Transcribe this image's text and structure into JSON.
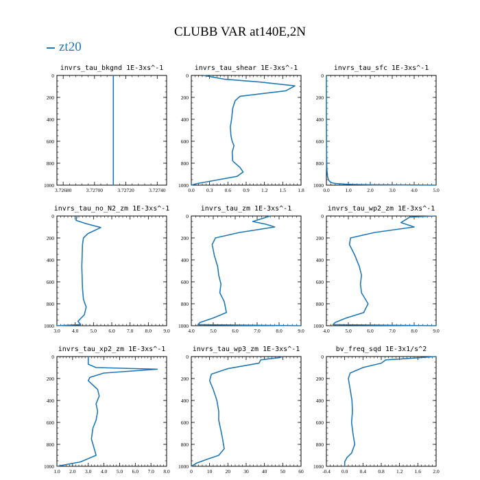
{
  "figure": {
    "title": "CLUBB VAR at140E,2N",
    "legend_label": "zt20",
    "line_color": "#1f77b4"
  },
  "chart_data": [
    {
      "type": "line",
      "title": "invrs_tau_bkgnd   1E-3xs^-1",
      "xlim": [
        3.72676,
        3.72746
      ],
      "ylim": [
        0,
        1000
      ],
      "y_inverted": true,
      "xticks": [
        "3.72680",
        "3.72700",
        "3.72720",
        "3.72740"
      ],
      "xtick_values": [
        3.7268,
        3.727,
        3.7272,
        3.7274
      ],
      "yticks": [
        0,
        200,
        400,
        600,
        800,
        1000
      ],
      "series": [
        {
          "x": [
            3.72712,
            3.72712
          ],
          "y": [
            0,
            1000
          ]
        }
      ]
    },
    {
      "type": "line",
      "title": "invrs_tau_shear   1E-3xs^-1",
      "xlim": [
        0.0,
        1.8
      ],
      "ylim": [
        0,
        1000
      ],
      "y_inverted": true,
      "xticks": [
        "0.0",
        "0.3",
        "0.6",
        "0.9",
        "1.2",
        "1.5",
        "1.8"
      ],
      "xtick_values": [
        0.0,
        0.3,
        0.6,
        0.9,
        1.2,
        1.5,
        1.8
      ],
      "yticks": [
        0,
        200,
        400,
        600,
        800,
        1000
      ],
      "series": [
        {
          "x": [
            0.2,
            0.55,
            1.12,
            1.7,
            1.55,
            0.8,
            0.72,
            0.68,
            0.66,
            0.64,
            0.65,
            0.67,
            0.7,
            0.67,
            0.68,
            0.8,
            0.85,
            0.75,
            0.35,
            0.1,
            0.0
          ],
          "y": [
            0,
            35,
            60,
            95,
            140,
            190,
            230,
            300,
            400,
            470,
            550,
            600,
            640,
            700,
            780,
            840,
            880,
            920,
            960,
            985,
            1000
          ]
        }
      ]
    },
    {
      "type": "line",
      "title": "invrs_tau_sfc   1E-3xs^-1",
      "xlim": [
        0.0,
        5.0
      ],
      "ylim": [
        0,
        1000
      ],
      "y_inverted": true,
      "xticks": [
        "0.0",
        "1.0",
        "2.0",
        "3.0",
        "4.0",
        "5.0"
      ],
      "xtick_values": [
        0.0,
        1.0,
        2.0,
        3.0,
        4.0,
        5.0
      ],
      "yticks": [
        0,
        200,
        400,
        600,
        800,
        1000
      ],
      "series": [
        {
          "x": [
            0.0,
            0.0,
            0.01,
            0.02,
            0.05,
            0.1,
            0.2,
            0.4,
            0.8,
            1.2,
            2.0,
            3.5,
            5.0
          ],
          "y": [
            0,
            400,
            700,
            850,
            920,
            955,
            975,
            985,
            990,
            993,
            996,
            998,
            1000
          ]
        }
      ]
    },
    {
      "type": "line",
      "title": "invrs_tau_no_N2_zm   1E-3xs^-1",
      "xlim": [
        3.0,
        9.0
      ],
      "ylim": [
        0,
        1000
      ],
      "y_inverted": true,
      "xticks": [
        "3.0",
        "4.0",
        "5.0",
        "6.0",
        "7.0",
        "8.0",
        "9.0"
      ],
      "xtick_values": [
        3.0,
        4.0,
        5.0,
        6.0,
        7.0,
        8.0,
        9.0
      ],
      "yticks": [
        0,
        200,
        400,
        600,
        800,
        1000
      ],
      "series": [
        {
          "x": [
            4.1,
            4.05,
            4.6,
            5.4,
            4.7,
            4.45,
            4.4,
            4.38,
            4.36,
            4.38,
            4.4,
            4.45,
            4.6,
            4.5,
            4.15,
            4.3,
            3.0
          ],
          "y": [
            0,
            40,
            70,
            105,
            160,
            200,
            260,
            360,
            460,
            560,
            660,
            760,
            830,
            900,
            960,
            990,
            1000
          ]
        }
      ]
    },
    {
      "type": "line",
      "title": "invrs_tau_zm   1E-3xs^-1",
      "xlim": [
        4.0,
        9.0
      ],
      "ylim": [
        0,
        1000
      ],
      "y_inverted": true,
      "xticks": [
        "4.0",
        "5.0",
        "6.0",
        "7.0",
        "8.0",
        "9.0"
      ],
      "xtick_values": [
        4.0,
        5.0,
        6.0,
        7.0,
        8.0,
        9.0
      ],
      "yticks": [
        0,
        200,
        400,
        600,
        800,
        1000
      ],
      "series": [
        {
          "x": [
            7.6,
            6.8,
            7.4,
            7.8,
            6.2,
            5.1,
            4.95,
            5.05,
            5.2,
            5.25,
            5.35,
            5.3,
            5.5,
            5.6,
            5.0,
            4.4,
            4.3,
            9.0
          ],
          "y": [
            0,
            50,
            75,
            100,
            150,
            200,
            260,
            360,
            460,
            540,
            620,
            700,
            780,
            880,
            930,
            970,
            990,
            1000
          ]
        }
      ]
    },
    {
      "type": "line",
      "title": "invrs_tau_wp2_zm   1E-3xs^-1",
      "xlim": [
        4.0,
        9.0
      ],
      "ylim": [
        0,
        1000
      ],
      "y_inverted": true,
      "xticks": [
        "4.0",
        "5.0",
        "6.0",
        "7.0",
        "8.0",
        "9.0"
      ],
      "xtick_values": [
        4.0,
        5.0,
        6.0,
        7.0,
        8.0,
        9.0
      ],
      "yticks": [
        0,
        200,
        400,
        600,
        800,
        1000
      ],
      "series": [
        {
          "x": [
            9.0,
            7.8,
            7.4,
            8.0,
            6.2,
            5.1,
            5.05,
            5.3,
            5.5,
            5.6,
            5.55,
            5.6,
            5.9,
            5.7,
            4.9,
            4.4,
            4.3,
            9.0
          ],
          "y": [
            0,
            10,
            60,
            100,
            150,
            200,
            260,
            360,
            460,
            540,
            620,
            700,
            800,
            880,
            930,
            970,
            990,
            1000
          ]
        }
      ]
    },
    {
      "type": "line",
      "title": "invrs_tau_xp2_zm   1E-3xs^-1",
      "xlim": [
        1.0,
        8.0
      ],
      "ylim": [
        0,
        1000
      ],
      "y_inverted": true,
      "xticks": [
        "1.0",
        "2.0",
        "3.0",
        "4.0",
        "5.0",
        "6.0",
        "7.0",
        "8.0"
      ],
      "xtick_values": [
        1.0,
        2.0,
        3.0,
        4.0,
        5.0,
        6.0,
        7.0,
        8.0
      ],
      "yticks": [
        0,
        200,
        400,
        600,
        800,
        1000
      ],
      "series": [
        {
          "x": [
            3.0,
            3.0,
            3.5,
            7.4,
            4.0,
            3.1,
            3.0,
            3.6,
            3.7,
            3.5,
            3.6,
            3.5,
            3.3,
            3.2,
            3.4,
            3.5,
            2.5,
            1.0
          ],
          "y": [
            0,
            70,
            100,
            115,
            150,
            190,
            220,
            300,
            360,
            430,
            500,
            580,
            650,
            750,
            850,
            900,
            960,
            1000
          ]
        }
      ]
    },
    {
      "type": "line",
      "title": "invrs_tau_wp3_zm   1E-3xs^-1",
      "xlim": [
        0,
        60
      ],
      "ylim": [
        0,
        1000
      ],
      "y_inverted": true,
      "xticks": [
        "0",
        "10",
        "20",
        "30",
        "40",
        "50",
        "60"
      ],
      "xtick_values": [
        0,
        10,
        20,
        30,
        40,
        50,
        60
      ],
      "yticks": [
        0,
        200,
        400,
        600,
        800,
        1000
      ],
      "series": [
        {
          "x": [
            50,
            48,
            38,
            37,
            20,
            11,
            10,
            12,
            14,
            15,
            15,
            16,
            17,
            18,
            15,
            8,
            3,
            1,
            0
          ],
          "y": [
            0,
            10,
            30,
            60,
            110,
            160,
            220,
            300,
            400,
            500,
            580,
            660,
            740,
            840,
            900,
            940,
            970,
            990,
            1000
          ]
        }
      ]
    },
    {
      "type": "line",
      "title": "bv_freq_sqd   1E-3x1/s^2",
      "xlim": [
        -0.4,
        2.0
      ],
      "ylim": [
        0,
        1000
      ],
      "y_inverted": true,
      "xticks": [
        "-0.4",
        "0.0",
        "0.4",
        "0.8",
        "1.2",
        "1.6",
        "2.0"
      ],
      "xtick_values": [
        -0.4,
        0.0,
        0.4,
        0.8,
        1.2,
        1.6,
        2.0
      ],
      "yticks": [
        0,
        200,
        400,
        600,
        800,
        1000
      ],
      "series": [
        {
          "x": [
            2.0,
            1.3,
            0.9,
            0.8,
            0.4,
            0.12,
            0.08,
            0.12,
            0.16,
            0.17,
            0.15,
            0.18,
            0.22,
            0.15,
            0.05,
            0.0,
            0.0
          ],
          "y": [
            0,
            20,
            30,
            60,
            100,
            150,
            200,
            300,
            400,
            500,
            600,
            700,
            800,
            880,
            920,
            960,
            1000
          ]
        }
      ]
    }
  ]
}
